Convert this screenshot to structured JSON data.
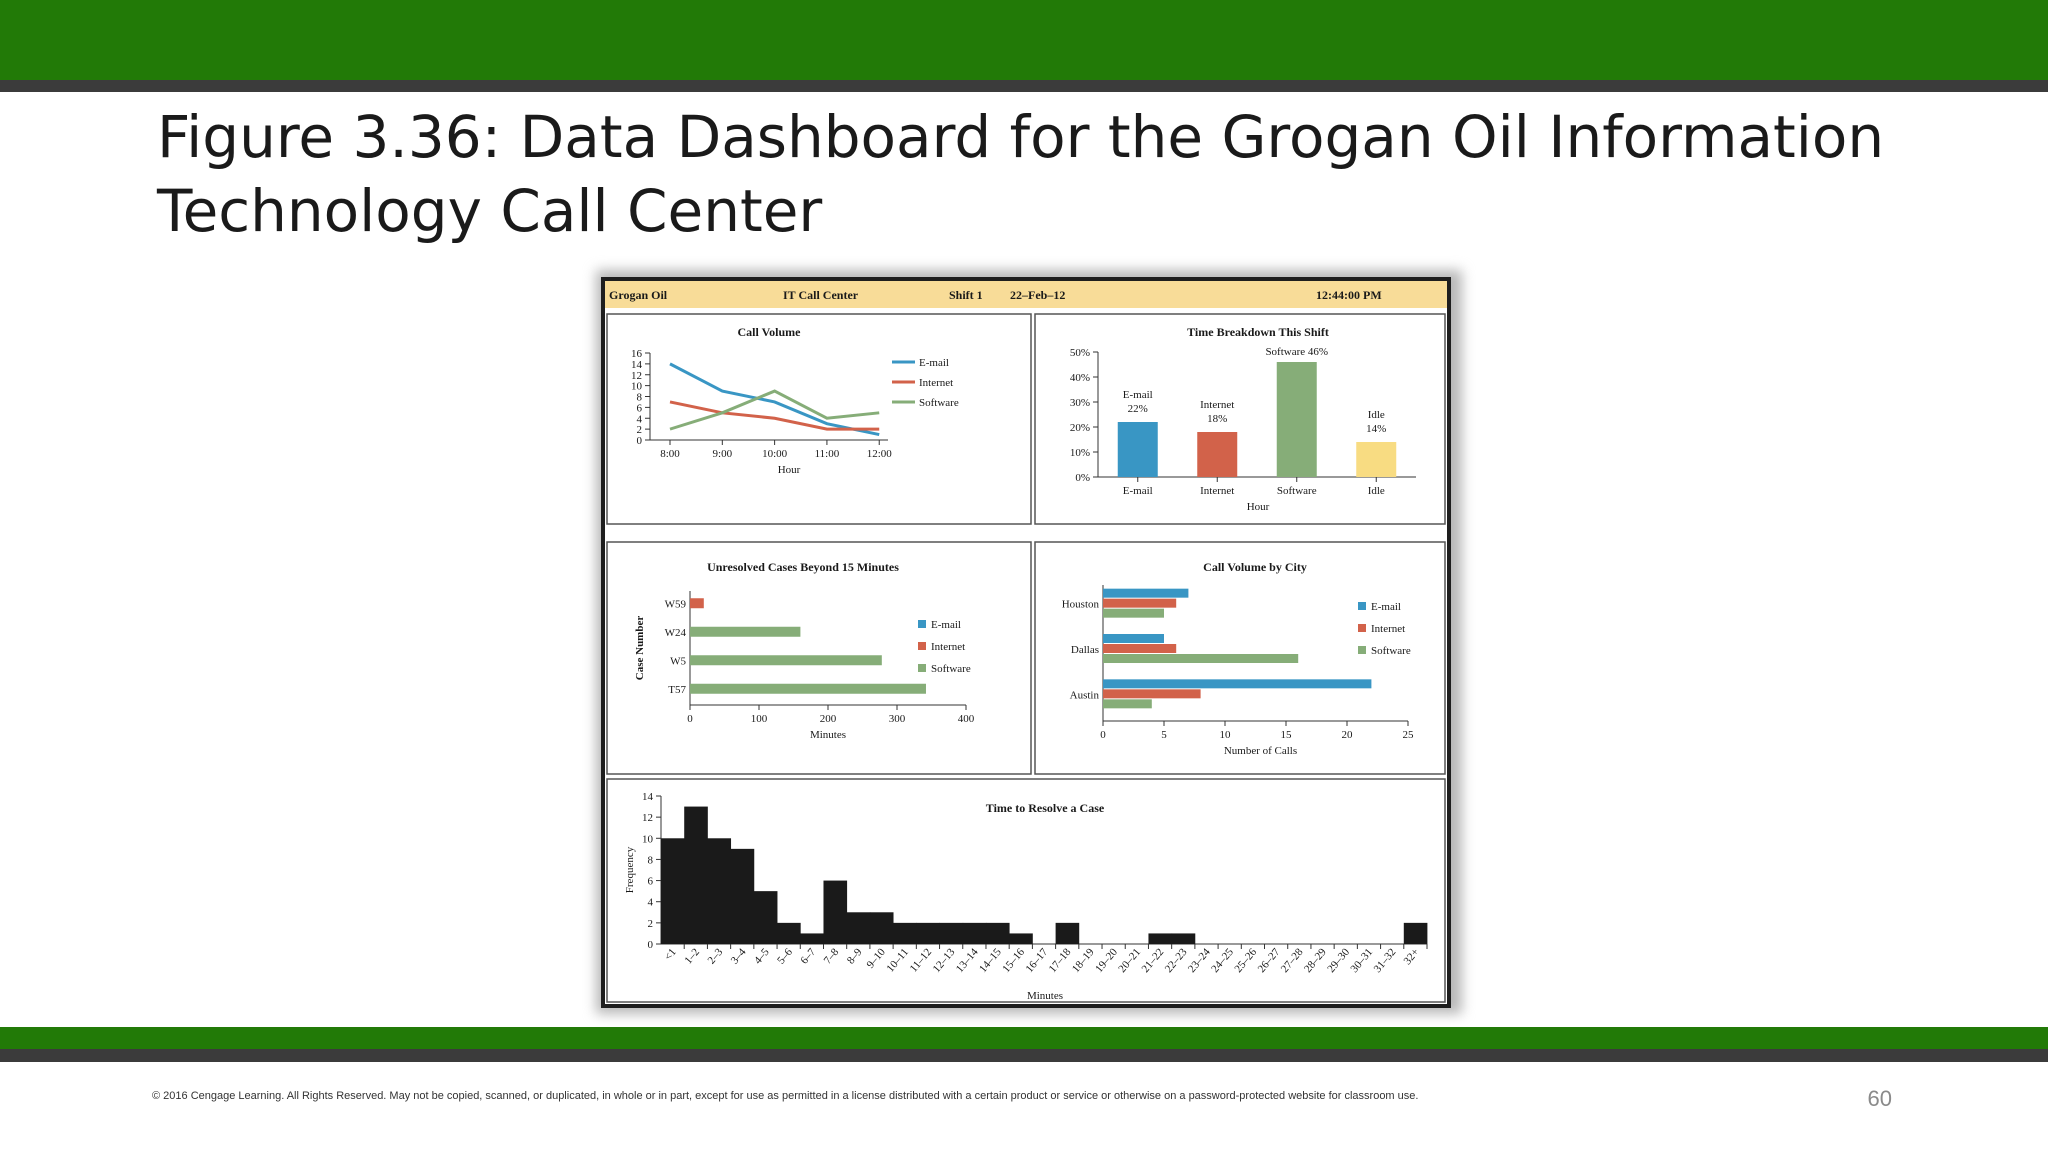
{
  "slide": {
    "title": "Figure 3.36: Data Dashboard for the Grogan Oil Information Technology Call Center",
    "footer": "© 2016 Cengage Learning.  All Rights Reserved.  May not be copied, scanned, or duplicated, in whole or in part, except for use as permitted in a license distributed with a certain product or service or otherwise on a password-protected website for classroom use.",
    "page_number": "60"
  },
  "header": {
    "company": "Grogan Oil",
    "department": "IT Call Center",
    "shift": "Shift 1",
    "date": "22–Feb–12",
    "time": "12:44:00 PM",
    "background": "#f8dc98"
  },
  "colors": {
    "email": "#3996c4",
    "internet": "#d2624a",
    "software": "#86ad78",
    "idle": "#f8dc82",
    "histogram": "#1a1a1a"
  },
  "chart_data": [
    {
      "type": "line",
      "title": "Call Volume",
      "xlabel": "Hour",
      "ylabel": "",
      "x": [
        "8:00",
        "9:00",
        "10:00",
        "11:00",
        "12:00"
      ],
      "ylim": [
        0,
        16
      ],
      "yticks": [
        0,
        2,
        4,
        6,
        8,
        10,
        12,
        14,
        16
      ],
      "legend_position": "top-right",
      "series": [
        {
          "name": "E-mail",
          "color": "#3996c4",
          "values": [
            14,
            9,
            7,
            3,
            1
          ]
        },
        {
          "name": "Internet",
          "color": "#d2624a",
          "values": [
            7,
            5,
            4,
            2,
            2
          ]
        },
        {
          "name": "Software",
          "color": "#86ad78",
          "values": [
            2,
            5,
            9,
            4,
            5
          ]
        }
      ]
    },
    {
      "type": "bar",
      "title": "Time Breakdown This Shift",
      "xlabel": "Hour",
      "ylabel": "",
      "categories": [
        "E-mail",
        "Internet",
        "Software",
        "Idle"
      ],
      "values": [
        22,
        18,
        46,
        14
      ],
      "colors": [
        "#3996c4",
        "#d2624a",
        "#86ad78",
        "#f8dc82"
      ],
      "ylim": [
        0,
        50
      ],
      "yticks": [
        "0%",
        "10%",
        "20%",
        "30%",
        "40%",
        "50%"
      ],
      "data_labels": [
        {
          "name": "E-mail",
          "pct": "22%"
        },
        {
          "name": "Internet",
          "pct": "18%"
        },
        {
          "name": "Software",
          "pct": "46%"
        },
        {
          "name": "Idle",
          "pct": "14%"
        }
      ]
    },
    {
      "type": "bar",
      "orientation": "horizontal",
      "title": "Unresolved Cases Beyond 15 Minutes",
      "xlabel": "Minutes",
      "ylabel": "Case Number",
      "categories": [
        "W59",
        "W24",
        "W5",
        "T57"
      ],
      "xlim": [
        0,
        400
      ],
      "xticks": [
        0,
        100,
        200,
        300,
        400
      ],
      "legend_position": "right",
      "series_names": [
        "E-mail",
        "Internet",
        "Software"
      ],
      "bars": [
        {
          "case": "W59",
          "series": "Internet",
          "value": 20
        },
        {
          "case": "W24",
          "series": "Software",
          "value": 160
        },
        {
          "case": "W5",
          "series": "Software",
          "value": 278
        },
        {
          "case": "T57",
          "series": "Software",
          "value": 342
        }
      ]
    },
    {
      "type": "bar",
      "orientation": "horizontal",
      "title": "Call Volume by City",
      "xlabel": "Number of Calls",
      "ylabel": "",
      "categories": [
        "Houston",
        "Dallas",
        "Austin"
      ],
      "xlim": [
        0,
        25
      ],
      "xticks": [
        0,
        5,
        10,
        15,
        20,
        25
      ],
      "legend_position": "top-right",
      "series": [
        {
          "name": "E-mail",
          "color": "#3996c4",
          "values": [
            7,
            5,
            22
          ]
        },
        {
          "name": "Internet",
          "color": "#d2624a",
          "values": [
            6,
            6,
            8
          ]
        },
        {
          "name": "Software",
          "color": "#86ad78",
          "values": [
            5,
            16,
            4
          ]
        }
      ]
    },
    {
      "type": "bar",
      "title": "Time to Resolve a Case",
      "xlabel": "Minutes",
      "ylabel": "Frequency",
      "ylim": [
        0,
        14
      ],
      "yticks": [
        0,
        2,
        4,
        6,
        8,
        10,
        12,
        14
      ],
      "categories": [
        "<1",
        "1–2",
        "2–3",
        "3–4",
        "4–5",
        "5–6",
        "6–7",
        "7–8",
        "8–9",
        "9–10",
        "10–11",
        "11–12",
        "12–13",
        "13–14",
        "14–15",
        "15–16",
        "16–17",
        "17–18",
        "18–19",
        "19–20",
        "20–21",
        "21–22",
        "22–23",
        "23–24",
        "24–25",
        "25–26",
        "26–27",
        "27–28",
        "28–29",
        "29–30",
        "30–31",
        "31–32",
        "32+"
      ],
      "values": [
        10,
        13,
        10,
        9,
        5,
        2,
        1,
        6,
        3,
        3,
        2,
        2,
        2,
        2,
        2,
        1,
        0,
        2,
        0,
        0,
        0,
        1,
        1,
        0,
        0,
        0,
        0,
        0,
        0,
        0,
        0,
        0,
        2
      ]
    }
  ]
}
